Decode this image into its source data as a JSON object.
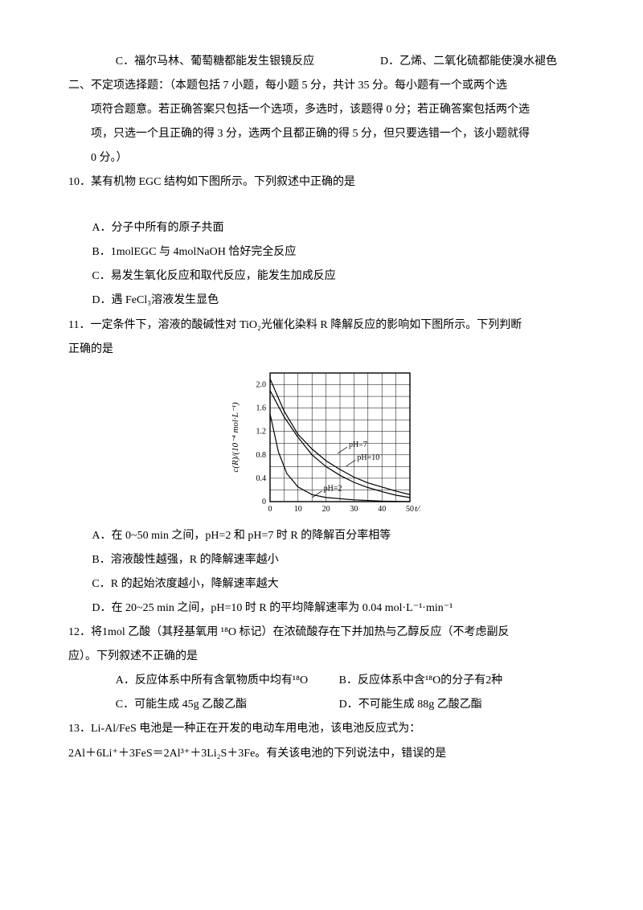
{
  "q9": {
    "optC": "C．福尔马林、葡萄糖都能发生银镜反应",
    "optD": "D．乙烯、二氧化硫都能使溴水褪色"
  },
  "section2": {
    "head": "二、不定项选择题：（本题包括 7 小题，每小题 5 分，共计 35 分。每小题有一个或两个选",
    "body1": "项符合题意。若正确答案只包括一个选项，多选时，该题得 0 分；若正确答案包括两个选",
    "body2": "项，只选一个且正确的得 3 分，选两个且都正确的得 5 分，但只要选错一个，该小题就得",
    "body3": "0 分。）"
  },
  "q10": {
    "stem": "10．某有机物 EGC 结构如下图所示。下列叙述中正确的是",
    "optA": "A．分子中所有的原子共面",
    "optB": "B．1molEGC 与 4molNaOH 恰好完全反应",
    "optC": "C．易发生氧化反应和取代反应，能发生加成反应",
    "optD": "D．遇 FeCl₃溶液发生显色"
  },
  "q11": {
    "stem1": "11．一定条件下，溶液的酸碱性对 TiO₂光催化染料 R 降解反应的影响如下图所示。下列判断",
    "stem2": "正确的是",
    "chart": {
      "xlabel": "t/min",
      "ylabel": "c(R)/(10⁻⁴ mol·L⁻¹)",
      "xlim": [
        0,
        50
      ],
      "xtick_step": 10,
      "ylim": [
        0,
        2.2
      ],
      "yticks": [
        0,
        0.4,
        0.8,
        1.2,
        1.6,
        2.0
      ],
      "background": "#ffffff",
      "grid_color": "#000000",
      "line_width": 1.2,
      "curves": {
        "ph2": {
          "label": "pH=2",
          "label_xy": [
            18,
            0.1
          ],
          "points": [
            [
              0,
              1.5
            ],
            [
              3,
              0.85
            ],
            [
              6,
              0.48
            ],
            [
              10,
              0.25
            ],
            [
              15,
              0.12
            ],
            [
              20,
              0.07
            ],
            [
              30,
              0.03
            ],
            [
              40,
              0.01
            ],
            [
              50,
              0.0
            ]
          ]
        },
        "ph7": {
          "label": "pH=7",
          "label_xy": [
            27,
            0.85
          ],
          "points": [
            [
              0,
              2.1
            ],
            [
              5,
              1.55
            ],
            [
              10,
              1.15
            ],
            [
              15,
              0.9
            ],
            [
              20,
              0.7
            ],
            [
              25,
              0.55
            ],
            [
              30,
              0.42
            ],
            [
              35,
              0.32
            ],
            [
              40,
              0.25
            ],
            [
              45,
              0.18
            ],
            [
              50,
              0.12
            ]
          ]
        },
        "ph10": {
          "label": "pH=10",
          "label_xy": [
            30,
            0.63
          ],
          "points": [
            [
              0,
              1.9
            ],
            [
              5,
              1.45
            ],
            [
              10,
              1.1
            ],
            [
              15,
              0.8
            ],
            [
              20,
              0.6
            ],
            [
              25,
              0.45
            ],
            [
              30,
              0.33
            ],
            [
              35,
              0.24
            ],
            [
              40,
              0.17
            ],
            [
              45,
              0.11
            ],
            [
              50,
              0.07
            ]
          ]
        }
      }
    },
    "optA": "A．在 0~50 min 之间，pH=2 和 pH=7 时 R 的降解百分率相等",
    "optB": "B．溶液酸性越强，R 的降解速率越小",
    "optC": "C．R 的起始浓度越小，降解速率越大",
    "optD": "D．在 20~25 min 之间，pH=10 时 R 的平均降解速率为 0.04 mol·L⁻¹·min⁻¹"
  },
  "q12": {
    "stem1": "12．将1mol 乙酸（其羟基氧用 ¹⁸O 标记）在浓硫酸存在下并加热与乙醇反应（不考虑副反",
    "stem2": "应）。下列叙述不正确的是",
    "optA": "A．反应体系中所有含氧物质中均有¹⁸O",
    "optB": "B．反应体系中含¹⁸O的分子有2种",
    "optC": "C．可能生成 45g 乙酸乙酯",
    "optD": "D．不可能生成 88g 乙酸乙酯"
  },
  "q13": {
    "stem": "13．Li-Al/FeS 电池是一种正在开发的电动车用电池，该电池反应式为：",
    "eqn": "2Al＋6Li⁺＋3FeS＝2Al³⁺＋3Li₂S＋3Fe。有关该电池的下列说法中，错误的是"
  }
}
